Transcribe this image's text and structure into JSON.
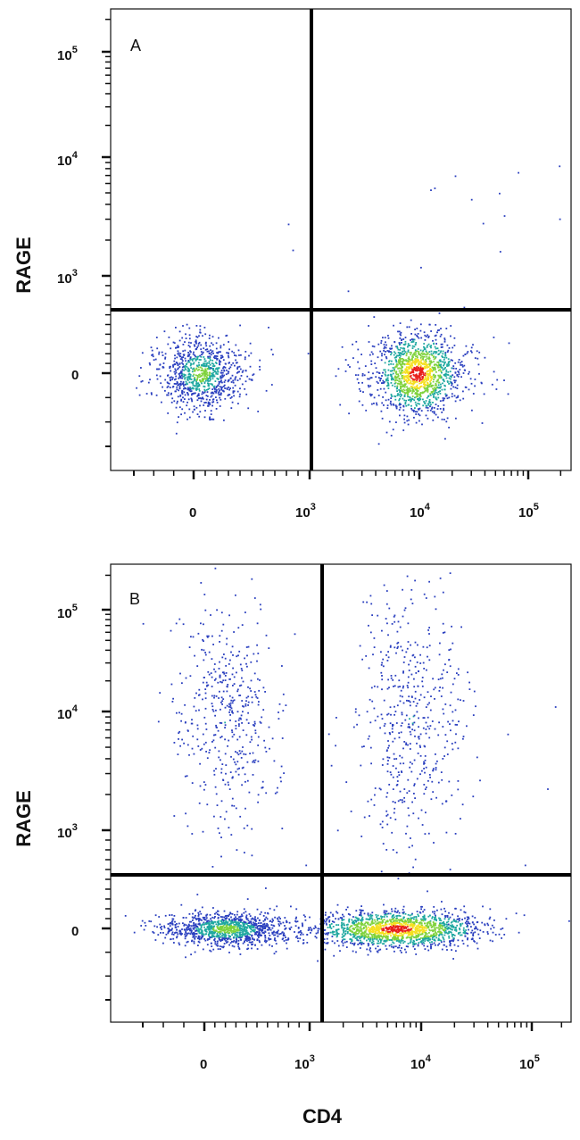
{
  "chart_data": [
    {
      "type": "scatter",
      "panel_label": "A",
      "ylabel": "RAGE",
      "xlabel": "",
      "x_scale": "biexponential",
      "y_scale": "biexponential",
      "x_ticks": [
        {
          "base": "0",
          "exp": ""
        },
        {
          "base": "10",
          "exp": "3"
        },
        {
          "base": "10",
          "exp": "4"
        },
        {
          "base": "10",
          "exp": "5"
        }
      ],
      "y_ticks": [
        {
          "base": "0",
          "exp": ""
        },
        {
          "base": "10",
          "exp": "3"
        },
        {
          "base": "10",
          "exp": "4"
        },
        {
          "base": "10",
          "exp": "5"
        }
      ],
      "quadrant_gate": {
        "x": 1150,
        "y": 520
      },
      "populations": [
        {
          "name": "",
          "x_center": 60,
          "y_center": 0,
          "count": 900,
          "density": "medium"
        },
        {
          "name": "",
          "x_center": 9500,
          "y_center": 0,
          "count": 1400,
          "density": "high"
        }
      ],
      "grid": false,
      "colormap": "density (blue-green-yellow-red)"
    },
    {
      "type": "scatter",
      "panel_label": "B",
      "ylabel": "RAGE",
      "xlabel": "CD4",
      "x_scale": "biexponential",
      "y_scale": "biexponential",
      "x_ticks": [
        {
          "base": "0",
          "exp": ""
        },
        {
          "base": "10",
          "exp": "3"
        },
        {
          "base": "10",
          "exp": "4"
        },
        {
          "base": "10",
          "exp": "5"
        }
      ],
      "y_ticks": [
        {
          "base": "0",
          "exp": ""
        },
        {
          "base": "10",
          "exp": "3"
        },
        {
          "base": "10",
          "exp": "4"
        },
        {
          "base": "10",
          "exp": "5"
        }
      ],
      "quadrant_gate": {
        "x": 1400,
        "y": 420
      },
      "populations": [
        {
          "name": "",
          "x_center": 200,
          "y_center": 0,
          "count": 1100,
          "density": "medium"
        },
        {
          "name": "",
          "x_center": 6000,
          "y_center": 0,
          "count": 1600,
          "density": "high"
        },
        {
          "name": "",
          "x_center": 200,
          "y_center": 9000,
          "count": 450,
          "density": "low"
        },
        {
          "name": "",
          "x_center": 8000,
          "y_center": 9000,
          "count": 500,
          "density": "low"
        }
      ],
      "grid": false,
      "colormap": "density (blue-green-yellow-red)"
    }
  ],
  "colors": {
    "low": "#2a3fbf",
    "mid": "#1fa8a0",
    "midhigh": "#7fd23c",
    "high": "#f5e020",
    "peak": "#e8201c",
    "axis": "#111111"
  }
}
